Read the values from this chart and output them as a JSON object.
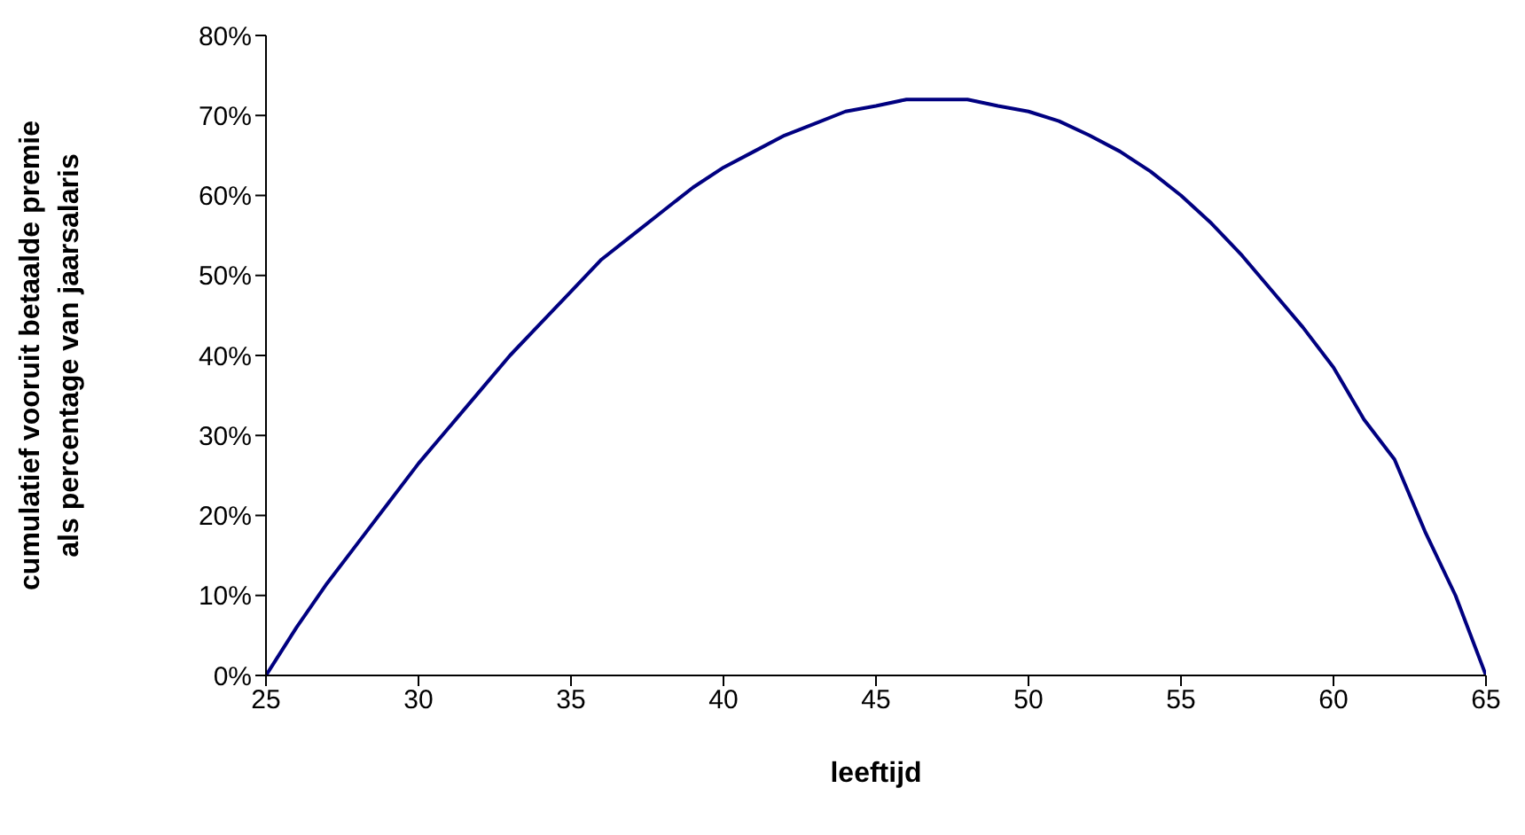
{
  "chart_data": {
    "type": "line",
    "xlabel": "leeftijd",
    "ylabel": "cumulatief vooruit betaalde premie\nals percentage van jaarsalaris",
    "x": [
      25,
      26,
      27,
      28,
      29,
      30,
      31,
      32,
      33,
      34,
      35,
      36,
      37,
      38,
      39,
      40,
      41,
      42,
      43,
      44,
      45,
      46,
      47,
      48,
      49,
      50,
      51,
      52,
      53,
      54,
      55,
      56,
      57,
      58,
      59,
      60,
      61,
      62,
      63,
      64,
      65
    ],
    "series": [
      {
        "color": "#000080",
        "values": [
          0,
          6,
          11.5,
          16.5,
          21.5,
          26.5,
          31,
          35.5,
          40,
          44,
          48,
          52,
          55,
          58,
          61,
          63.5,
          65.5,
          67.5,
          69,
          70.5,
          71.2,
          72,
          72,
          72,
          71.2,
          70.5,
          69.3,
          67.5,
          65.5,
          63,
          60,
          56.5,
          52.5,
          48,
          43.5,
          38.5,
          32,
          27,
          18,
          10,
          0
        ]
      }
    ],
    "xlim": [
      25,
      65
    ],
    "xticks": [
      25,
      30,
      35,
      40,
      45,
      50,
      55,
      60,
      65
    ],
    "ylim": [
      0,
      80
    ],
    "yticks": [
      {
        "value": 0,
        "label": "0%"
      },
      {
        "value": 10,
        "label": "10%"
      },
      {
        "value": 20,
        "label": "20%"
      },
      {
        "value": 30,
        "label": "30%"
      },
      {
        "value": 40,
        "label": "40%"
      },
      {
        "value": 50,
        "label": "50%"
      },
      {
        "value": 60,
        "label": "60%"
      },
      {
        "value": 70,
        "label": "70%"
      },
      {
        "value": 80,
        "label": "80%"
      }
    ],
    "grid": false,
    "legend": false,
    "marker": "none",
    "line_style": "solid"
  }
}
